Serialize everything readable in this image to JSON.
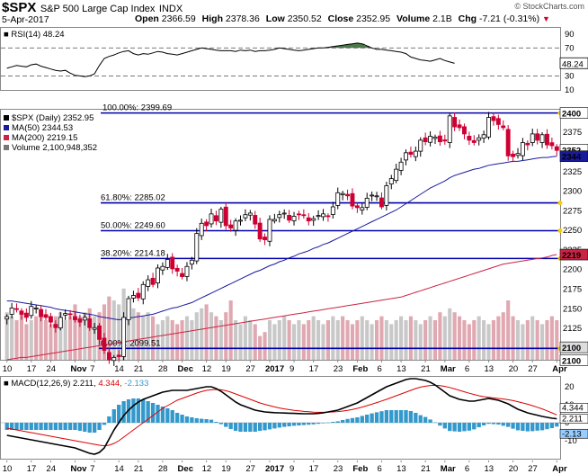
{
  "header": {
    "symbol": "$SPX",
    "name": "S&P 500 Large Cap Index",
    "exchange": "INDX",
    "date": "5-Apr-2017",
    "open_label": "Open",
    "open": "2366.59",
    "high_label": "High",
    "high": "2378.36",
    "low_label": "Low",
    "low": "2350.52",
    "close_label": "Close",
    "close": "2352.95",
    "volume_label": "Volume",
    "volume": "2.1B",
    "chg_label": "Chg",
    "chg": "-7.21 (-0.31%)",
    "copyright": "© StockCharts.com"
  },
  "colors": {
    "up": "#ffffff",
    "down": "#cc0033",
    "ma50": "#1a1a9e",
    "ma200": "#cc2244",
    "fib": "#0000aa",
    "volume": "#bbbbbb",
    "rsi_fill": "#4a7a4a",
    "macd_hist": "#3399cc",
    "signal": "#dd0000",
    "marker": "#ffcc00"
  },
  "chart_data": [
    {
      "type": "line",
      "panel": "rsi",
      "legend": "RSI(14) 48.24",
      "ylim": [
        10,
        100
      ],
      "yticks": [
        10,
        30,
        50,
        70,
        90
      ],
      "levels": [
        30,
        70
      ],
      "last_label": "48.24",
      "values": [
        41,
        43,
        45,
        44,
        43,
        46,
        47,
        44,
        42,
        40,
        38,
        37,
        38,
        34,
        31,
        30,
        29,
        30,
        33,
        45,
        55,
        58,
        60,
        63,
        65,
        66,
        62,
        60,
        62,
        61,
        63,
        65,
        64,
        62,
        61,
        60,
        62,
        64,
        66,
        68,
        70,
        69,
        68,
        67,
        66,
        66,
        66,
        65,
        67,
        66,
        67,
        65,
        66,
        66,
        67,
        68,
        70,
        69,
        68,
        67,
        66,
        67,
        68,
        69,
        70,
        70,
        71,
        72,
        73,
        74,
        75,
        76,
        77,
        76,
        73,
        70,
        68,
        68,
        67,
        66,
        65,
        64,
        62,
        57,
        55,
        53,
        52,
        51,
        53,
        55,
        52,
        50,
        48
      ]
    },
    {
      "type": "candlestick",
      "panel": "price",
      "legend": [
        "$SPX (Daily) 2352.95",
        "MA(50) 2344.53",
        "MA(200) 2219.15",
        "Volume 2,100,948,352"
      ],
      "ylim": [
        2085,
        2405
      ],
      "yticks": [
        2100,
        2125,
        2150,
        2175,
        2200,
        2225,
        2250,
        2275,
        2300,
        2325,
        2350,
        2375,
        2400
      ],
      "last_labels": [
        "2400",
        "2352",
        "2344",
        "2219",
        "2100",
        "2100"
      ],
      "close": [
        2140,
        2151,
        2150,
        2143,
        2139,
        2153,
        2151,
        2140,
        2139,
        2133,
        2126,
        2139,
        2144,
        2143,
        2136,
        2133,
        2139,
        2126,
        2126,
        2111,
        2097,
        2085,
        2088,
        2089,
        2139,
        2163,
        2167,
        2164,
        2181,
        2187,
        2181,
        2202,
        2204,
        2213,
        2201,
        2198,
        2191,
        2204,
        2212,
        2246,
        2259,
        2256,
        2271,
        2262,
        2277,
        2256,
        2253,
        2262,
        2263,
        2270,
        2272,
        2258,
        2239,
        2238,
        2264,
        2264,
        2270,
        2272,
        2263,
        2268,
        2270,
        2269,
        2262,
        2265,
        2269,
        2271,
        2268,
        2280,
        2298,
        2297,
        2294,
        2281,
        2279,
        2279,
        2291,
        2295,
        2294,
        2280,
        2307,
        2316,
        2328,
        2337,
        2349,
        2347,
        2351,
        2365,
        2363,
        2370,
        2369,
        2363,
        2364,
        2396,
        2382,
        2381,
        2373,
        2365,
        2362,
        2368,
        2372,
        2394,
        2390,
        2385,
        2381,
        2345,
        2344,
        2348,
        2362,
        2359,
        2373,
        2365,
        2372,
        2359,
        2358,
        2352
      ],
      "ma50": [
        2160,
        2160,
        2159,
        2158,
        2157,
        2156,
        2155,
        2154,
        2153,
        2152,
        2150,
        2149,
        2148,
        2147,
        2146,
        2145,
        2144,
        2143,
        2142,
        2140,
        2139,
        2138,
        2137,
        2136,
        2137,
        2138,
        2139,
        2140,
        2141,
        2142,
        2143,
        2145,
        2147,
        2149,
        2151,
        2152,
        2154,
        2156,
        2158,
        2161,
        2164,
        2167,
        2170,
        2173,
        2176,
        2179,
        2182,
        2185,
        2188,
        2191,
        2194,
        2197,
        2199,
        2202,
        2205,
        2207,
        2210,
        2212,
        2215,
        2217,
        2220,
        2222,
        2224,
        2227,
        2229,
        2232,
        2234,
        2237,
        2240,
        2243,
        2246,
        2249,
        2252,
        2255,
        2258,
        2261,
        2264,
        2267,
        2270,
        2273,
        2276,
        2280,
        2284,
        2288,
        2292,
        2296,
        2300,
        2304,
        2307,
        2310,
        2313,
        2317,
        2320,
        2322,
        2324,
        2326,
        2328,
        2329,
        2331,
        2333,
        2334,
        2335,
        2336,
        2337,
        2338,
        2338,
        2339,
        2340,
        2341,
        2342,
        2343,
        2343,
        2344,
        2344.53
      ],
      "ma200": [
        2085,
        2086,
        2087,
        2088,
        2088,
        2089,
        2090,
        2091,
        2092,
        2093,
        2094,
        2095,
        2096,
        2097,
        2098,
        2099,
        2100,
        2101,
        2102,
        2103,
        2104,
        2105,
        2106,
        2107,
        2108,
        2109,
        2110,
        2111,
        2112,
        2113,
        2114,
        2115,
        2116,
        2117,
        2118,
        2119,
        2120,
        2121,
        2122,
        2123,
        2124,
        2125,
        2126,
        2127,
        2128,
        2129,
        2130,
        2131,
        2132,
        2133,
        2134,
        2135,
        2136,
        2137,
        2138,
        2139,
        2140,
        2141,
        2142,
        2143,
        2144,
        2145,
        2146,
        2147,
        2148,
        2149,
        2150,
        2151,
        2152,
        2153,
        2154,
        2155,
        2156,
        2157,
        2158,
        2159,
        2160,
        2161,
        2162,
        2163,
        2164,
        2165,
        2167,
        2169,
        2171,
        2173,
        2175,
        2177,
        2179,
        2181,
        2183,
        2185,
        2187,
        2189,
        2191,
        2193,
        2195,
        2197,
        2199,
        2201,
        2203,
        2205,
        2207,
        2208,
        2209,
        2210,
        2211,
        2212,
        2213,
        2214,
        2215,
        2216,
        2218,
        2219.15
      ],
      "volume_relative": [
        0.6,
        0.55,
        0.5,
        0.6,
        0.45,
        0.5,
        0.55,
        0.6,
        0.5,
        0.45,
        0.55,
        0.6,
        0.5,
        0.55,
        0.7,
        0.55,
        0.6,
        0.65,
        0.55,
        0.6,
        0.7,
        0.8,
        0.75,
        0.7,
        0.9,
        0.75,
        0.65,
        0.6,
        0.55,
        0.6,
        0.55,
        0.45,
        0.5,
        0.55,
        0.5,
        0.45,
        0.5,
        0.55,
        0.5,
        0.6,
        0.65,
        0.7,
        0.6,
        0.55,
        0.5,
        0.6,
        0.75,
        0.5,
        0.45,
        0.55,
        0.5,
        0.45,
        0.3,
        0.35,
        0.5,
        0.45,
        0.5,
        0.55,
        0.5,
        0.45,
        0.5,
        0.45,
        0.5,
        0.55,
        0.5,
        0.45,
        0.5,
        0.55,
        0.5,
        0.55,
        0.5,
        0.45,
        0.5,
        0.55,
        0.5,
        0.45,
        0.5,
        0.55,
        0.5,
        0.45,
        0.5,
        0.55,
        0.5,
        0.55,
        0.5,
        0.45,
        0.5,
        0.55,
        0.5,
        0.6,
        0.55,
        0.65,
        0.6,
        0.55,
        0.5,
        0.45,
        0.5,
        0.55,
        0.5,
        0.45,
        0.5,
        0.55,
        0.6,
        0.75,
        0.55,
        0.5,
        0.45,
        0.5,
        0.55,
        0.5,
        0.45,
        0.5,
        0.55,
        0.5
      ],
      "fibonacci": [
        {
          "label": "100.00%: 2399.69",
          "value": 2399.69
        },
        {
          "label": "61.80%: 2285.02",
          "value": 2285.02
        },
        {
          "label": "50.00%: 2249.60",
          "value": 2249.6
        },
        {
          "label": "38.20%: 2214.18",
          "value": 2214.18
        },
        {
          "label": "0.00%: 2099.51",
          "value": 2099.51
        }
      ]
    },
    {
      "type": "line",
      "panel": "macd",
      "legend": [
        "MACD(12,26,9) 2.211,",
        "4.344,",
        "-2.133"
      ],
      "ylim": [
        -20,
        26
      ],
      "yticks": [
        -10,
        0,
        10,
        20
      ],
      "last_labels": [
        "4.344",
        "2.211",
        "-2.13"
      ],
      "macd": [
        -7,
        -7.5,
        -8,
        -8.5,
        -9,
        -9.5,
        -10,
        -10.5,
        -11,
        -11.5,
        -12,
        -12.5,
        -13,
        -13.5,
        -14,
        -15,
        -16,
        -17,
        -17.5,
        -16.5,
        -14,
        -9,
        -4,
        0,
        4,
        7,
        9.5,
        11.5,
        13,
        14,
        15,
        16,
        17,
        17.5,
        18,
        18,
        18,
        18,
        18.5,
        19,
        19.5,
        20,
        20,
        19,
        17.5,
        15.5,
        13.5,
        11.5,
        10,
        9,
        8,
        7,
        6.5,
        6,
        5.8,
        5.6,
        5.5,
        5.4,
        5.3,
        5.2,
        5.1,
        5,
        5,
        5,
        5.2,
        5.5,
        6,
        6.5,
        7,
        8,
        9,
        10,
        11,
        12.5,
        14,
        15.5,
        17,
        18.5,
        20,
        21,
        22,
        23,
        24,
        24.5,
        24.5,
        24,
        23.5,
        22.5,
        21,
        19,
        17,
        15,
        14,
        13,
        12.5,
        12,
        12,
        12.5,
        13,
        13.5,
        13,
        12.5,
        11.5,
        10.5,
        9,
        7.5,
        6.5,
        5.5,
        4.8,
        4.2,
        3.5,
        3,
        2.5,
        2.211
      ],
      "signal": [
        -3,
        -3.5,
        -4,
        -4.5,
        -5,
        -5.5,
        -6,
        -6.5,
        -7,
        -7.5,
        -8,
        -8.5,
        -9,
        -9.5,
        -10,
        -10.5,
        -11,
        -11.5,
        -12,
        -12.5,
        -12.8,
        -12.5,
        -11.5,
        -10,
        -8,
        -6,
        -4,
        -2,
        0,
        2,
        4,
        6,
        8,
        9.5,
        11,
        12.5,
        13.5,
        14.5,
        15.5,
        16.5,
        17.3,
        18,
        18.3,
        18.5,
        18.3,
        17.8,
        17,
        16,
        15,
        14,
        13,
        12,
        11,
        10.2,
        9.5,
        8.8,
        8.2,
        7.7,
        7.3,
        6.9,
        6.6,
        6.3,
        6.1,
        5.9,
        5.8,
        5.8,
        5.9,
        6,
        6.2,
        6.5,
        6.9,
        7.4,
        8,
        8.7,
        9.5,
        10.3,
        11.2,
        12.1,
        13,
        14,
        15,
        16,
        17,
        18,
        19,
        19.8,
        20.3,
        20.7,
        20.8,
        20.6,
        20.2,
        19.6,
        18.8,
        18,
        17.2,
        16.4,
        15.7,
        15,
        14.5,
        14.1,
        13.8,
        13.5,
        13.2,
        12.8,
        12.3,
        11.7,
        11,
        10.3,
        9.5,
        8.6,
        7.7,
        6.6,
        5.5,
        4.344
      ]
    }
  ],
  "x_axis": {
    "labels": [
      "10",
      "17",
      "24",
      "Nov",
      "7",
      "14",
      "21",
      "28",
      "Dec",
      "12",
      "19",
      "27",
      "2017",
      "9",
      "17",
      "23",
      "Feb",
      "6",
      "13",
      "21",
      "Mar",
      "6",
      "13",
      "20",
      "27",
      "Apr"
    ]
  }
}
